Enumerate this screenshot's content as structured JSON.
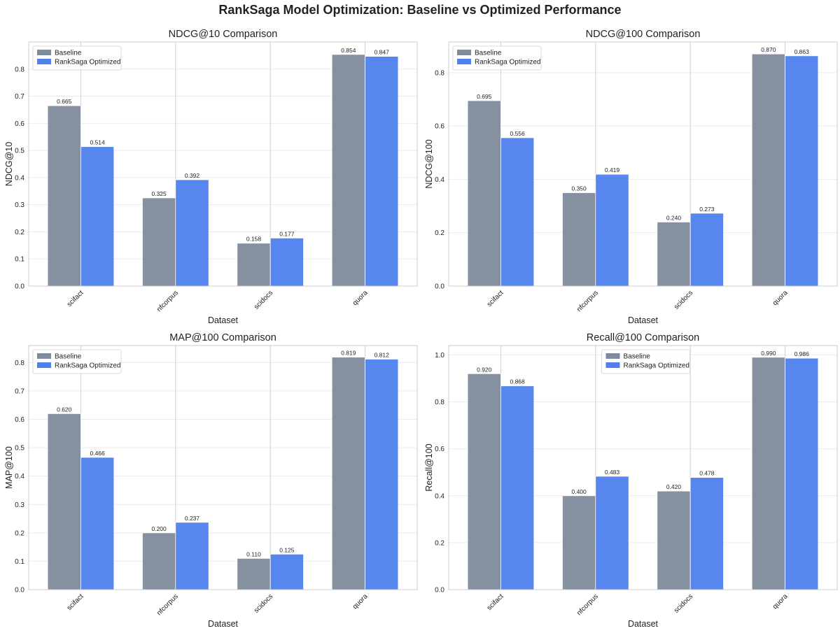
{
  "suptitle": "RankSaga Model Optimization: Baseline vs Optimized Performance",
  "colors": {
    "baseline": "#7f8c9d",
    "optimized": "#4f80ee"
  },
  "chart_data": [
    {
      "type": "bar",
      "title": "NDCG@10 Comparison",
      "xlabel": "Dataset",
      "ylabel": "NDCG@10",
      "categories": [
        "scifact",
        "nfcorpus",
        "scidocs",
        "quora"
      ],
      "ylim": [
        0,
        0.9
      ],
      "yticks": [
        0.0,
        0.1,
        0.2,
        0.3,
        0.4,
        0.5,
        0.6,
        0.7,
        0.8
      ],
      "tick_decimals": 1,
      "legend": "top-left",
      "grid": true,
      "series": [
        {
          "name": "Baseline",
          "values": [
            0.665,
            0.325,
            0.158,
            0.854
          ],
          "labels": [
            "0.665",
            "0.325",
            "0.158",
            "0.854"
          ]
        },
        {
          "name": "RankSaga Optimized",
          "values": [
            0.514,
            0.392,
            0.177,
            0.847
          ],
          "labels": [
            "0.514",
            "0.392",
            "0.177",
            "0.847"
          ]
        }
      ]
    },
    {
      "type": "bar",
      "title": "NDCG@100 Comparison",
      "xlabel": "Dataset",
      "ylabel": "NDCG@100",
      "categories": [
        "scifact",
        "nfcorpus",
        "scidocs",
        "quora"
      ],
      "ylim": [
        0,
        0.915
      ],
      "yticks": [
        0.0,
        0.2,
        0.4,
        0.6,
        0.8
      ],
      "tick_decimals": 1,
      "legend": "top-left",
      "grid": true,
      "series": [
        {
          "name": "Baseline",
          "values": [
            0.695,
            0.35,
            0.24,
            0.87
          ],
          "labels": [
            "0.695",
            "0.350",
            "0.240",
            "0.870"
          ]
        },
        {
          "name": "RankSaga Optimized",
          "values": [
            0.556,
            0.419,
            0.273,
            0.863
          ],
          "labels": [
            "0.556",
            "0.419",
            "0.273",
            "0.863"
          ]
        }
      ]
    },
    {
      "type": "bar",
      "title": "MAP@100 Comparison",
      "xlabel": "Dataset",
      "ylabel": "MAP@100",
      "categories": [
        "scifact",
        "nfcorpus",
        "scidocs",
        "quora"
      ],
      "ylim": [
        0,
        0.86
      ],
      "yticks": [
        0.0,
        0.1,
        0.2,
        0.3,
        0.4,
        0.5,
        0.6,
        0.7,
        0.8
      ],
      "tick_decimals": 1,
      "legend": "top-left",
      "grid": true,
      "series": [
        {
          "name": "Baseline",
          "values": [
            0.62,
            0.2,
            0.11,
            0.819
          ],
          "labels": [
            "0.620",
            "0.200",
            "0.110",
            "0.819"
          ]
        },
        {
          "name": "RankSaga Optimized",
          "values": [
            0.466,
            0.237,
            0.125,
            0.812
          ],
          "labels": [
            "0.466",
            "0.237",
            "0.125",
            "0.812"
          ]
        }
      ]
    },
    {
      "type": "bar",
      "title": "Recall@100 Comparison",
      "xlabel": "Dataset",
      "ylabel": "Recall@100",
      "categories": [
        "scifact",
        "nfcorpus",
        "scidocs",
        "quora"
      ],
      "ylim": [
        0,
        1.04
      ],
      "yticks": [
        0.0,
        0.2,
        0.4,
        0.6,
        0.8,
        1.0
      ],
      "tick_decimals": 1,
      "legend": "top-center",
      "grid": true,
      "series": [
        {
          "name": "Baseline",
          "values": [
            0.92,
            0.4,
            0.42,
            0.99
          ],
          "labels": [
            "0.920",
            "0.400",
            "0.420",
            "0.990"
          ]
        },
        {
          "name": "RankSaga Optimized",
          "values": [
            0.868,
            0.483,
            0.478,
            0.986
          ],
          "labels": [
            "0.868",
            "0.483",
            "0.478",
            "0.986"
          ]
        }
      ]
    }
  ]
}
